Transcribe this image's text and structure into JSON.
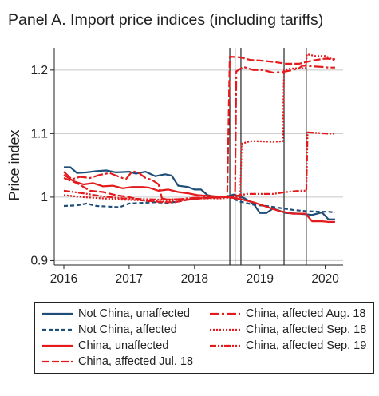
{
  "chart_data": {
    "type": "line",
    "title": "Panel A. Import price indices (including tariffs)",
    "ylabel": "Price index",
    "xlabel": "",
    "xlim": [
      2016,
      2020.2
    ],
    "ylim": [
      0.893,
      1.235
    ],
    "x_ticks": [
      2016,
      2017,
      2018,
      2019,
      2020
    ],
    "x_tick_labels": [
      "2016",
      "2017",
      "2018",
      "2019",
      "2020"
    ],
    "y_ticks": [
      0.9,
      1.0,
      1.1,
      1.2
    ],
    "y_tick_labels": [
      "0.9",
      "1",
      "1.1",
      "1.2"
    ],
    "grid": "horizontal",
    "legend_position": "bottom",
    "event_lines": [
      2018.54,
      2018.62,
      2018.71,
      2019.37,
      2019.71
    ],
    "series": [
      {
        "name": "Not China, unaffected",
        "color": "#1f4e79",
        "dash": "solid",
        "x": [
          2016.0,
          2016.1,
          2016.2,
          2016.35,
          2016.5,
          2016.65,
          2016.8,
          2017.0,
          2017.1,
          2017.25,
          2017.4,
          2017.55,
          2017.65,
          2017.75,
          2017.9,
          2018.0,
          2018.1,
          2018.2,
          2018.35,
          2018.5,
          2018.6,
          2018.75,
          2018.9,
          2019.0,
          2019.1,
          2019.2,
          2019.4,
          2019.6,
          2019.8,
          2019.95,
          2020.05,
          2020.15
        ],
        "y": [
          1.047,
          1.047,
          1.038,
          1.039,
          1.041,
          1.042,
          1.039,
          1.04,
          1.037,
          1.04,
          1.033,
          1.036,
          1.034,
          1.018,
          1.016,
          1.012,
          1.012,
          1.003,
          1.0,
          1.001,
          1.004,
          0.999,
          0.99,
          0.975,
          0.975,
          0.982,
          0.975,
          0.974,
          0.972,
          0.976,
          0.965,
          0.965
        ]
      },
      {
        "name": "Not China, affected",
        "color": "#1f4e79",
        "dash": "dash",
        "x": [
          2016.0,
          2016.2,
          2016.35,
          2016.5,
          2016.7,
          2016.85,
          2017.0,
          2017.2,
          2017.4,
          2017.6,
          2017.8,
          2018.0,
          2018.2,
          2018.5,
          2018.7,
          2018.9,
          2019.1,
          2019.3,
          2019.5,
          2019.7,
          2019.9,
          2020.05,
          2020.15
        ],
        "y": [
          0.986,
          0.987,
          0.99,
          0.986,
          0.985,
          0.984,
          0.99,
          0.991,
          0.992,
          0.991,
          0.994,
          0.998,
          0.999,
          1.001,
          0.993,
          0.988,
          0.986,
          0.983,
          0.98,
          0.978,
          0.977,
          0.977,
          0.976
        ]
      },
      {
        "name": "China, unaffected",
        "color": "#e41a1c",
        "dash": "solid",
        "x": [
          2016.0,
          2016.15,
          2016.3,
          2016.45,
          2016.6,
          2016.75,
          2016.9,
          2017.05,
          2017.2,
          2017.3,
          2017.45,
          2017.6,
          2017.75,
          2017.9,
          2018.05,
          2018.2,
          2018.35,
          2018.5,
          2018.7,
          2018.9,
          2019.1,
          2019.3,
          2019.5,
          2019.7,
          2019.8,
          2019.95,
          2020.05,
          2020.15
        ],
        "y": [
          1.035,
          1.025,
          1.02,
          1.022,
          1.017,
          1.018,
          1.014,
          1.016,
          1.016,
          1.015,
          1.01,
          1.012,
          1.008,
          1.006,
          1.003,
          1.002,
          1.001,
          1.0,
          0.997,
          0.992,
          0.985,
          0.978,
          0.974,
          0.974,
          0.962,
          0.962,
          0.961,
          0.961
        ]
      },
      {
        "name": "China, affected Jul. 18",
        "color": "#e41a1c",
        "dash": "longdash",
        "x": [
          2016.0,
          2016.2,
          2016.4,
          2016.6,
          2016.8,
          2017.0,
          2017.2,
          2017.4,
          2017.55,
          2017.7,
          2017.9,
          2018.1,
          2018.3,
          2018.5,
          2018.54,
          2018.7,
          2018.85,
          2019.0,
          2019.2,
          2019.4,
          2019.6,
          2019.8,
          2020.0,
          2020.15
        ],
        "y": [
          1.03,
          1.022,
          1.01,
          1.008,
          1.003,
          1.0,
          0.995,
          0.993,
          0.992,
          0.992,
          0.996,
          0.998,
          0.999,
          1.0,
          1.221,
          1.22,
          1.216,
          1.215,
          1.213,
          1.21,
          1.21,
          1.215,
          1.218,
          1.217
        ]
      },
      {
        "name": "China, affected Aug. 18",
        "color": "#e41a1c",
        "dash": "dashdot",
        "x": [
          2016.0,
          2016.12,
          2016.25,
          2016.4,
          2016.55,
          2016.7,
          2016.85,
          2016.95,
          2017.05,
          2017.15,
          2017.25,
          2017.35,
          2017.45,
          2017.5,
          2017.6,
          2017.8,
          2018.0,
          2018.2,
          2018.4,
          2018.62,
          2018.64,
          2018.75,
          2018.9,
          2019.05,
          2019.2,
          2019.35,
          2019.5,
          2019.6,
          2019.65,
          2019.8,
          2019.95,
          2020.05,
          2020.15
        ],
        "y": [
          1.04,
          1.028,
          1.032,
          1.03,
          1.035,
          1.038,
          1.032,
          1.028,
          1.041,
          1.038,
          1.03,
          1.027,
          1.02,
          0.998,
          0.996,
          0.997,
          0.999,
          1.0,
          1.001,
          1.0,
          1.198,
          1.205,
          1.2,
          1.2,
          1.196,
          1.197,
          1.2,
          1.203,
          1.207,
          1.206,
          1.205,
          1.204,
          1.204
        ]
      },
      {
        "name": "China, affected Sep. 18",
        "color": "#e41a1c",
        "dash": "dot",
        "x": [
          2016.0,
          2016.3,
          2016.6,
          2016.9,
          2017.2,
          2017.5,
          2017.8,
          2018.1,
          2018.4,
          2018.7,
          2018.72,
          2018.85,
          2019.0,
          2019.2,
          2019.35,
          2019.37,
          2019.45,
          2019.6,
          2019.7,
          2019.72,
          2019.85,
          2020.0,
          2020.15
        ],
        "y": [
          1.003,
          1.0,
          0.998,
          0.996,
          0.995,
          0.993,
          0.995,
          0.998,
          0.998,
          1.0,
          1.084,
          1.088,
          1.088,
          1.087,
          1.088,
          1.2,
          1.202,
          1.203,
          1.203,
          1.225,
          1.222,
          1.222,
          1.215
        ]
      },
      {
        "name": "China, affected Sep. 19",
        "color": "#e41a1c",
        "dash": "dashdotdot",
        "x": [
          2016.0,
          2016.3,
          2016.6,
          2016.9,
          2017.2,
          2017.5,
          2017.8,
          2018.1,
          2018.4,
          2018.6,
          2018.8,
          2019.0,
          2019.2,
          2019.4,
          2019.6,
          2019.71,
          2019.73,
          2019.9,
          2020.05,
          2020.15
        ],
        "y": [
          1.01,
          1.006,
          1.001,
          0.998,
          0.997,
          0.996,
          0.997,
          0.999,
          1.001,
          1.001,
          1.005,
          1.005,
          1.005,
          1.008,
          1.01,
          1.01,
          1.102,
          1.101,
          1.1,
          1.1
        ]
      }
    ],
    "legend_columns": [
      [
        "Not China, unaffected",
        "Not China, affected",
        "China, unaffected",
        "China, affected Jul. 18"
      ],
      [
        "China, affected Aug. 18",
        "China, affected Sep. 18",
        "China, affected Sep. 19"
      ]
    ]
  }
}
